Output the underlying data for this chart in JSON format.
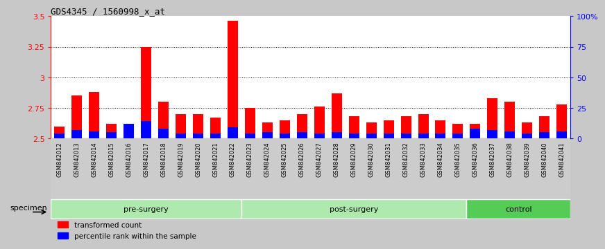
{
  "title": "GDS4345 / 1560998_x_at",
  "categories": [
    "GSM842012",
    "GSM842013",
    "GSM842014",
    "GSM842015",
    "GSM842016",
    "GSM842017",
    "GSM842018",
    "GSM842019",
    "GSM842020",
    "GSM842021",
    "GSM842022",
    "GSM842023",
    "GSM842024",
    "GSM842025",
    "GSM842026",
    "GSM842027",
    "GSM842028",
    "GSM842029",
    "GSM842030",
    "GSM842031",
    "GSM842032",
    "GSM842033",
    "GSM842034",
    "GSM842035",
    "GSM842036",
    "GSM842037",
    "GSM842038",
    "GSM842039",
    "GSM842040",
    "GSM842041"
  ],
  "red_values": [
    2.6,
    2.85,
    2.88,
    2.62,
    2.57,
    3.25,
    2.8,
    2.7,
    2.7,
    2.67,
    3.46,
    2.75,
    2.63,
    2.65,
    2.7,
    2.76,
    2.87,
    2.68,
    2.63,
    2.65,
    2.68,
    2.7,
    2.65,
    2.62,
    2.62,
    2.83,
    2.8,
    2.63,
    2.68,
    2.78
  ],
  "blue_pct": [
    4,
    7,
    6,
    5,
    12,
    14,
    8,
    4,
    4,
    4,
    9,
    4,
    5,
    4,
    5,
    4,
    5,
    4,
    4,
    4,
    4,
    4,
    4,
    4,
    8,
    7,
    6,
    4,
    5,
    6
  ],
  "ylim_left": [
    2.5,
    3.5
  ],
  "ylim_right": [
    0,
    100
  ],
  "yticks_left": [
    2.5,
    2.75,
    3.0,
    3.25,
    3.5
  ],
  "yticks_right": [
    0,
    25,
    50,
    75,
    100
  ],
  "ytick_labels_left": [
    "2.5",
    "2.75",
    "3",
    "3.25",
    "3.5"
  ],
  "ytick_labels_right": [
    "0",
    "25",
    "50",
    "75",
    "100%"
  ],
  "hlines": [
    2.75,
    3.0,
    3.25
  ],
  "pre_surgery_color": "#aeeaae",
  "post_surgery_color": "#aeeaae",
  "control_color": "#55cc55",
  "xticklabel_bg": "#cccccc",
  "background_color": "#c8c8c8",
  "plot_bg_color": "#ffffff",
  "legend_items": [
    {
      "label": "transformed count",
      "color": "red"
    },
    {
      "label": "percentile rank within the sample",
      "color": "blue"
    }
  ]
}
